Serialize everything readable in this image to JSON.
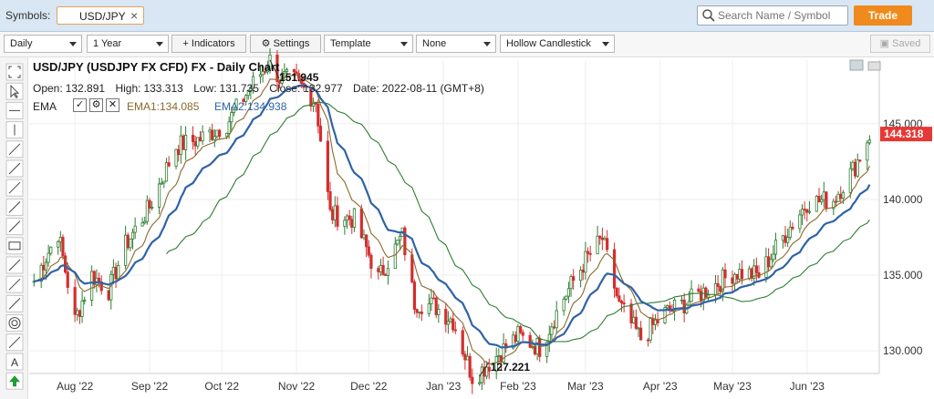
{
  "header": {
    "symbols_label": "Symbols:",
    "symbol_chip": "USD/JPY",
    "search_placeholder": "Search Name / Symbol",
    "trade_label": "Trade"
  },
  "toolbar": {
    "period": "Daily",
    "range": "1 Year",
    "indicators": "+ Indicators",
    "settings": "Settings",
    "template": "Template",
    "none": "None",
    "chart_style": "Hollow Candlestick",
    "saved": "Saved"
  },
  "chart_header": {
    "title": "USD/JPY (USDJPY FX CFD) FX - Daily Chart",
    "open_label": "Open:",
    "open": "132.891",
    "high_label": "High:",
    "high": "133.313",
    "low_label": "Low:",
    "low": "131.735",
    "close_label": "Close:",
    "close": "132.977",
    "date_label": "Date:",
    "date": "2022-08-11 (GMT+8)",
    "ema_label": "EMA",
    "ema1": "EMA1:134.085",
    "ema2": "EMA2:134.938"
  },
  "chart_data": {
    "type": "line",
    "title": "USD/JPY (USDJPY FX CFD) FX - Daily Chart",
    "x_ticks": [
      "Aug '22",
      "Sep '22",
      "Oct '22",
      "Nov '22",
      "Dec '22",
      "Jan '23",
      "Feb '23",
      "Mar '23",
      "Apr '23",
      "May '23",
      "Jun '23"
    ],
    "y_ticks": [
      "130.000",
      "135.000",
      "140.000",
      "145.000"
    ],
    "ylim": [
      128.5,
      149.2
    ],
    "last_price_label": "144.318",
    "last_price": 144.318,
    "high_annotation": {
      "label": "151.945",
      "value": 151.945
    },
    "low_annotation": {
      "label": "127.221",
      "value": 127.221
    },
    "colors": {
      "up": "#2e7d32",
      "down": "#d32f2f",
      "ema1": "#8b6a2d",
      "ema2": "#2f63a6",
      "sma": "#2e7d32"
    },
    "series": [
      {
        "name": "USD/JPY close",
        "x": [
          "2022-07-15",
          "2022-07-25",
          "2022-08-01",
          "2022-08-08",
          "2022-08-15",
          "2022-08-22",
          "2022-09-01",
          "2022-09-12",
          "2022-09-22",
          "2022-10-03",
          "2022-10-12",
          "2022-10-21",
          "2022-10-25",
          "2022-11-01",
          "2022-11-09",
          "2022-11-15",
          "2022-11-25",
          "2022-12-05",
          "2022-12-15",
          "2022-12-20",
          "2022-12-28",
          "2023-01-05",
          "2023-01-13",
          "2023-01-16",
          "2023-02-01",
          "2023-02-10",
          "2023-02-20",
          "2023-03-01",
          "2023-03-08",
          "2023-03-15",
          "2023-03-24",
          "2023-04-03",
          "2023-04-12",
          "2023-04-25",
          "2023-05-02",
          "2023-05-12",
          "2023-05-22",
          "2023-06-01",
          "2023-06-12",
          "2023-06-21",
          "2023-06-27"
        ],
        "values": [
          134.6,
          137.8,
          132.0,
          135.0,
          134.0,
          137.0,
          139.5,
          143.5,
          144.0,
          145.0,
          147.2,
          149.2,
          148.0,
          147.8,
          146.5,
          139.0,
          138.7,
          134.8,
          137.6,
          133.2,
          133.0,
          132.0,
          128.3,
          128.6,
          131.0,
          130.2,
          133.5,
          136.0,
          137.4,
          133.0,
          130.8,
          132.5,
          133.2,
          134.5,
          135.2,
          135.0,
          137.5,
          139.8,
          140.0,
          142.2,
          144.3
        ]
      }
    ]
  }
}
